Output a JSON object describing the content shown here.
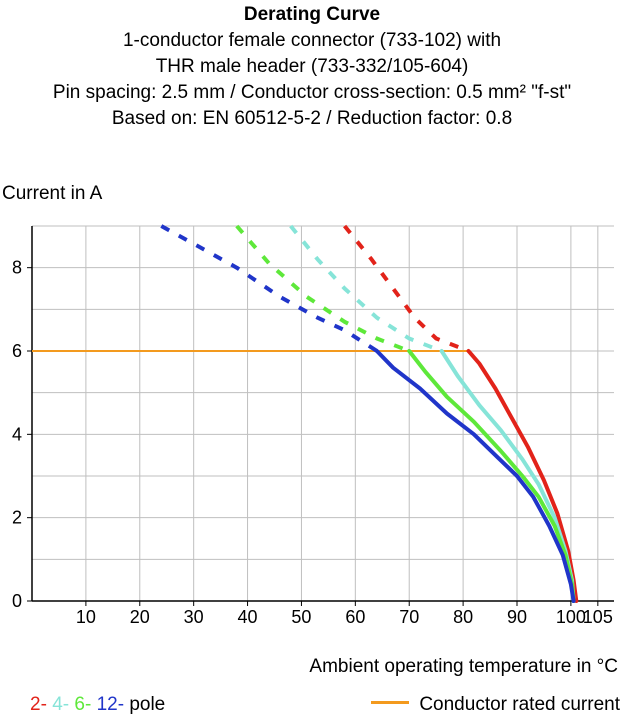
{
  "chart_data": {
    "type": "line",
    "title": "Derating Curve",
    "subtitle_lines": [
      "1-conductor female connector (733-102) with",
      "THR male header (733-332/105-604)",
      "Pin spacing: 2.5 mm / Conductor cross-section: 0.5 mm² \"f-st\"",
      "Based on: EN 60512-5-2 / Reduction factor: 0.8"
    ],
    "ylabel": "Current in A",
    "xlabel": "Ambient operating temperature in °C",
    "xlim": [
      0,
      108
    ],
    "ylim": [
      0,
      9
    ],
    "x_ticks": [
      10,
      20,
      30,
      40,
      50,
      60,
      70,
      80,
      90,
      100,
      105
    ],
    "y_ticks": [
      0,
      2,
      4,
      6,
      8
    ],
    "grid": true,
    "rated_current": {
      "label": "Conductor rated current",
      "value": 6,
      "x_start": 0,
      "x_end": 81,
      "color": "#f39a1e"
    },
    "legend_poles": [
      {
        "label": "2-",
        "color": "#e2231a"
      },
      {
        "label": "4-",
        "color": "#86e4d8"
      },
      {
        "label": "6-",
        "color": "#5ee83a"
      },
      {
        "label": "12-",
        "color": "#2035c9"
      }
    ],
    "legend_suffix": "pole",
    "series": [
      {
        "name": "2-",
        "color": "#e2231a",
        "dashed": [
          [
            58,
            9
          ],
          [
            63,
            8.2
          ],
          [
            67,
            7.5
          ],
          [
            71,
            6.8
          ],
          [
            75,
            6.3
          ],
          [
            81,
            6
          ]
        ],
        "solid": [
          [
            81,
            6
          ],
          [
            83,
            5.7
          ],
          [
            86,
            5.1
          ],
          [
            89,
            4.4
          ],
          [
            92,
            3.7
          ],
          [
            95,
            2.9
          ],
          [
            97.5,
            2.1
          ],
          [
            99.5,
            1.2
          ],
          [
            100.5,
            0.5
          ],
          [
            101,
            0
          ]
        ]
      },
      {
        "name": "4-",
        "color": "#86e4d8",
        "dashed": [
          [
            48,
            9
          ],
          [
            53,
            8.2
          ],
          [
            58,
            7.5
          ],
          [
            64,
            6.8
          ],
          [
            70,
            6.3
          ],
          [
            76,
            6
          ]
        ],
        "solid": [
          [
            76,
            6
          ],
          [
            79,
            5.4
          ],
          [
            83,
            4.7
          ],
          [
            87,
            4.1
          ],
          [
            91,
            3.4
          ],
          [
            94,
            2.8
          ],
          [
            97,
            2
          ],
          [
            99,
            1.2
          ],
          [
            100.2,
            0.5
          ],
          [
            100.5,
            0
          ]
        ]
      },
      {
        "name": "6-",
        "color": "#5ee83a",
        "dashed": [
          [
            38,
            9
          ],
          [
            44,
            8.1
          ],
          [
            51,
            7.3
          ],
          [
            58,
            6.7
          ],
          [
            64,
            6.3
          ],
          [
            70,
            6
          ]
        ],
        "solid": [
          [
            70,
            6
          ],
          [
            73,
            5.5
          ],
          [
            77,
            4.9
          ],
          [
            82,
            4.3
          ],
          [
            87,
            3.6
          ],
          [
            91,
            3
          ],
          [
            94,
            2.5
          ],
          [
            97,
            1.8
          ],
          [
            99,
            1.1
          ],
          [
            100.2,
            0.4
          ],
          [
            100.5,
            0
          ]
        ]
      },
      {
        "name": "12-",
        "color": "#2035c9",
        "dashed": [
          [
            24,
            9
          ],
          [
            31,
            8.5
          ],
          [
            38,
            8
          ],
          [
            46,
            7.3
          ],
          [
            53,
            6.8
          ],
          [
            58,
            6.5
          ],
          [
            64,
            6
          ]
        ],
        "solid": [
          [
            64,
            6
          ],
          [
            67,
            5.6
          ],
          [
            72,
            5.1
          ],
          [
            77,
            4.5
          ],
          [
            82,
            4
          ],
          [
            86,
            3.5
          ],
          [
            90,
            3
          ],
          [
            93,
            2.5
          ],
          [
            96,
            1.8
          ],
          [
            98.5,
            1.1
          ],
          [
            100,
            0.4
          ],
          [
            100.5,
            0
          ]
        ]
      }
    ]
  }
}
